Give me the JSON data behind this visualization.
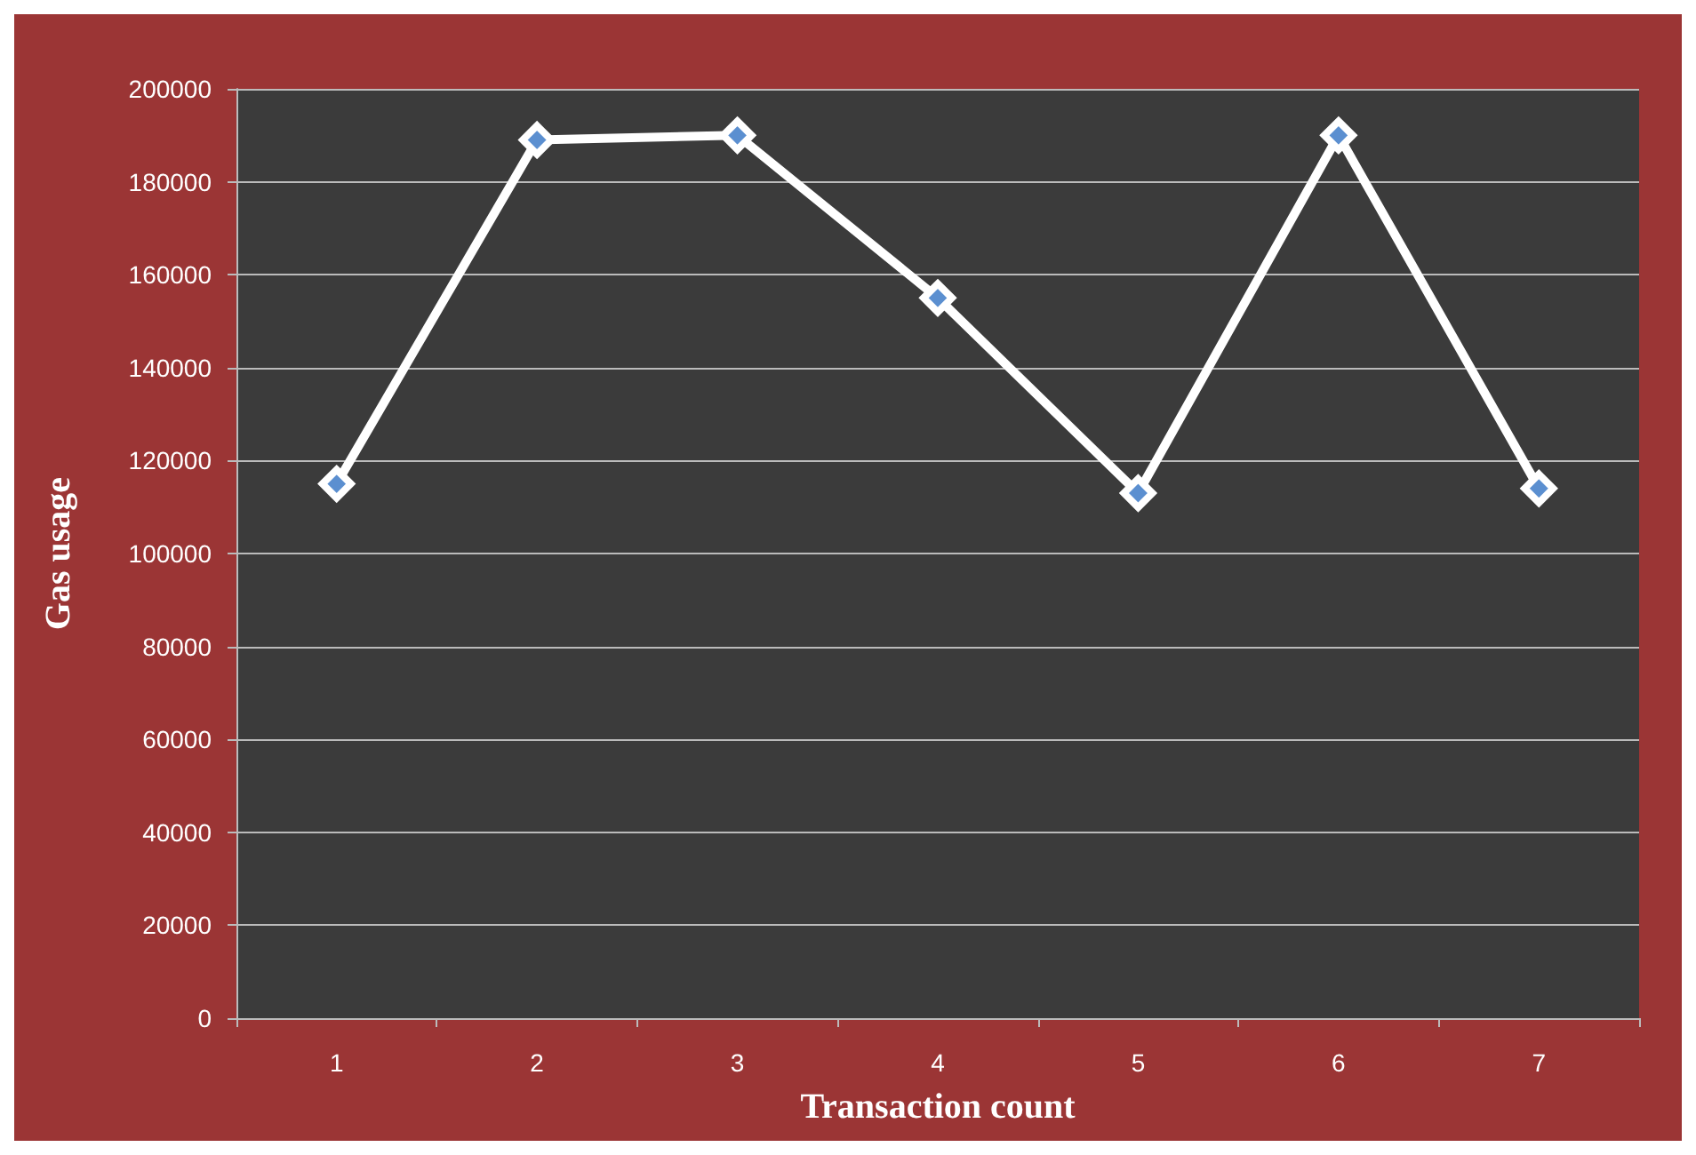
{
  "chart_data": {
    "type": "line",
    "xlabel": "Transaction count",
    "ylabel": "Gas usage",
    "categories": [
      "1",
      "2",
      "3",
      "4",
      "5",
      "6",
      "7"
    ],
    "series": [
      {
        "color": "#ffffff",
        "values": [
          115000,
          189000,
          190000,
          155000,
          113000,
          190000,
          114000
        ]
      }
    ],
    "ylim": [
      0,
      200000
    ],
    "yticks": [
      0,
      20000,
      40000,
      60000,
      80000,
      100000,
      120000,
      140000,
      160000,
      180000,
      200000
    ],
    "grid": "y",
    "marker": "diamond",
    "line_style": "solid"
  }
}
